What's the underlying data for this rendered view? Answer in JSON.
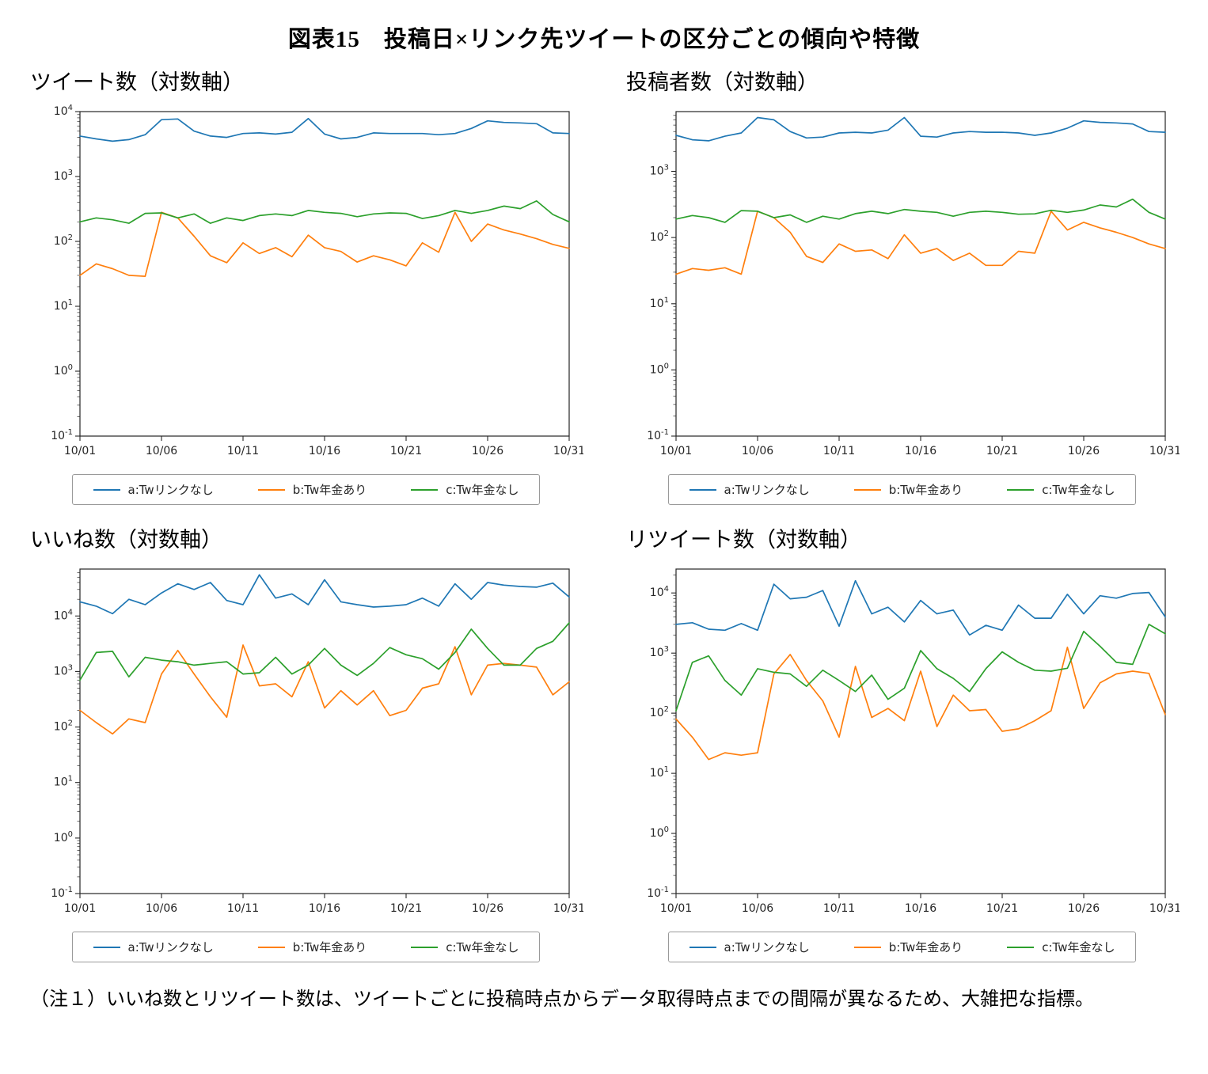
{
  "figure_title": "図表15　投稿日×リンク先ツイートの区分ごとの傾向や特徴",
  "note": "（注１）いいね数とリツイート数は、ツイートごとに投稿時点からデータ取得時点までの間隔が異なるため、大雑把な指標。",
  "colors": {
    "a": "#1f77b4",
    "b": "#ff7f0e",
    "c": "#2ca02c"
  },
  "legend": [
    "a:Twリンクなし",
    "b:Tw年金あり",
    "c:Tw年金なし"
  ],
  "x_tick_labels": [
    "10/01",
    "10/06",
    "10/11",
    "10/16",
    "10/21",
    "10/26",
    "10/31"
  ],
  "chart_data": [
    {
      "type": "line",
      "title": "ツイート数（対数軸）",
      "y_scale": "log",
      "ylim": [
        0.1,
        10000
      ],
      "x_ticks": [
        1,
        6,
        11,
        16,
        21,
        26,
        31
      ],
      "series": [
        {
          "name": "a:Twリンクなし",
          "color": "#1f77b4",
          "values": [
            4200,
            3800,
            3500,
            3700,
            4400,
            7500,
            7700,
            5000,
            4200,
            4000,
            4600,
            4700,
            4500,
            4800,
            7800,
            4500,
            3800,
            4000,
            4700,
            4600,
            4600,
            4600,
            4400,
            4600,
            5500,
            7200,
            6800,
            6700,
            6500,
            4700,
            4600
          ]
        },
        {
          "name": "b:Tw年金あり",
          "color": "#ff7f0e",
          "values": [
            30,
            45,
            38,
            30,
            29,
            280,
            230,
            120,
            60,
            47,
            95,
            65,
            80,
            58,
            125,
            80,
            70,
            48,
            60,
            52,
            42,
            95,
            68,
            280,
            100,
            185,
            150,
            130,
            110,
            90,
            78
          ]
        },
        {
          "name": "c:Tw年金なし",
          "color": "#2ca02c",
          "values": [
            200,
            230,
            215,
            190,
            270,
            275,
            230,
            265,
            190,
            230,
            210,
            250,
            265,
            250,
            300,
            280,
            270,
            240,
            265,
            275,
            270,
            225,
            250,
            300,
            270,
            300,
            350,
            320,
            420,
            260,
            200
          ]
        }
      ]
    },
    {
      "type": "line",
      "title": "投稿者数（対数軸）",
      "y_scale": "log",
      "ylim": [
        0.1,
        8000
      ],
      "x_ticks": [
        1,
        6,
        11,
        16,
        21,
        26,
        31
      ],
      "series": [
        {
          "name": "a:Twリンクなし",
          "color": "#1f77b4",
          "values": [
            3500,
            3000,
            2900,
            3400,
            3800,
            6500,
            6000,
            4000,
            3200,
            3300,
            3800,
            3900,
            3800,
            4200,
            6500,
            3400,
            3300,
            3800,
            4000,
            3900,
            3900,
            3800,
            3500,
            3800,
            4500,
            5800,
            5500,
            5400,
            5200,
            4000,
            3900
          ]
        },
        {
          "name": "b:Tw年金あり",
          "color": "#ff7f0e",
          "values": [
            28,
            34,
            32,
            35,
            28,
            250,
            200,
            120,
            52,
            42,
            80,
            62,
            65,
            48,
            110,
            58,
            68,
            45,
            58,
            38,
            38,
            62,
            58,
            250,
            130,
            170,
            140,
            120,
            100,
            80,
            68
          ]
        },
        {
          "name": "c:Tw年金なし",
          "color": "#2ca02c",
          "values": [
            190,
            215,
            200,
            170,
            255,
            250,
            200,
            220,
            170,
            210,
            190,
            230,
            250,
            230,
            265,
            250,
            240,
            210,
            240,
            250,
            240,
            225,
            228,
            258,
            240,
            260,
            310,
            290,
            380,
            240,
            190
          ]
        }
      ]
    },
    {
      "type": "line",
      "title": "いいね数（対数軸）",
      "y_scale": "log",
      "ylim": [
        0.1,
        70000
      ],
      "x_ticks": [
        1,
        6,
        11,
        16,
        21,
        26,
        31
      ],
      "series": [
        {
          "name": "a:Twリンクなし",
          "color": "#1f77b4",
          "values": [
            18000,
            15000,
            11000,
            20000,
            16000,
            26000,
            38000,
            30000,
            40000,
            19000,
            16000,
            55000,
            21000,
            25000,
            16000,
            45000,
            18000,
            16000,
            14500,
            15000,
            16000,
            21000,
            15000,
            38000,
            20000,
            40000,
            36000,
            34000,
            33000,
            39000,
            22000
          ]
        },
        {
          "name": "b:Tw年金あり",
          "color": "#ff7f0e",
          "values": [
            200,
            120,
            75,
            140,
            120,
            900,
            2400,
            900,
            350,
            150,
            3000,
            550,
            600,
            350,
            1500,
            220,
            450,
            250,
            450,
            160,
            200,
            500,
            600,
            2800,
            380,
            1300,
            1400,
            1300,
            1200,
            380,
            650
          ]
        },
        {
          "name": "c:Tw年金なし",
          "color": "#2ca02c",
          "values": [
            700,
            2200,
            2300,
            800,
            1800,
            1600,
            1500,
            1300,
            1400,
            1500,
            900,
            950,
            1800,
            900,
            1300,
            2600,
            1300,
            850,
            1400,
            2700,
            2000,
            1700,
            1100,
            2200,
            5800,
            2600,
            1300,
            1300,
            2600,
            3500,
            7500
          ]
        }
      ]
    },
    {
      "type": "line",
      "title": "リツイート数（対数軸）",
      "y_scale": "log",
      "ylim": [
        0.1,
        25000
      ],
      "x_ticks": [
        1,
        6,
        11,
        16,
        21,
        26,
        31
      ],
      "series": [
        {
          "name": "a:Twリンクなし",
          "color": "#1f77b4",
          "values": [
            3000,
            3200,
            2500,
            2400,
            3100,
            2400,
            14000,
            8000,
            8500,
            11000,
            2800,
            16000,
            4500,
            5800,
            3300,
            7500,
            4500,
            5200,
            2000,
            2900,
            2400,
            6300,
            3800,
            3800,
            9500,
            4500,
            9000,
            8200,
            9800,
            10200,
            4000
          ]
        },
        {
          "name": "b:Tw年金あり",
          "color": "#ff7f0e",
          "values": [
            80,
            40,
            17,
            22,
            20,
            22,
            450,
            950,
            350,
            160,
            40,
            600,
            85,
            120,
            75,
            500,
            60,
            200,
            110,
            115,
            50,
            55,
            75,
            110,
            1250,
            120,
            320,
            450,
            500,
            460,
            95
          ]
        },
        {
          "name": "c:Tw年金なし",
          "color": "#2ca02c",
          "values": [
            110,
            700,
            900,
            350,
            200,
            550,
            480,
            450,
            280,
            520,
            350,
            230,
            430,
            170,
            260,
            1100,
            550,
            380,
            230,
            550,
            1050,
            700,
            520,
            500,
            560,
            2300,
            1300,
            700,
            650,
            3000,
            2100
          ]
        }
      ]
    }
  ]
}
